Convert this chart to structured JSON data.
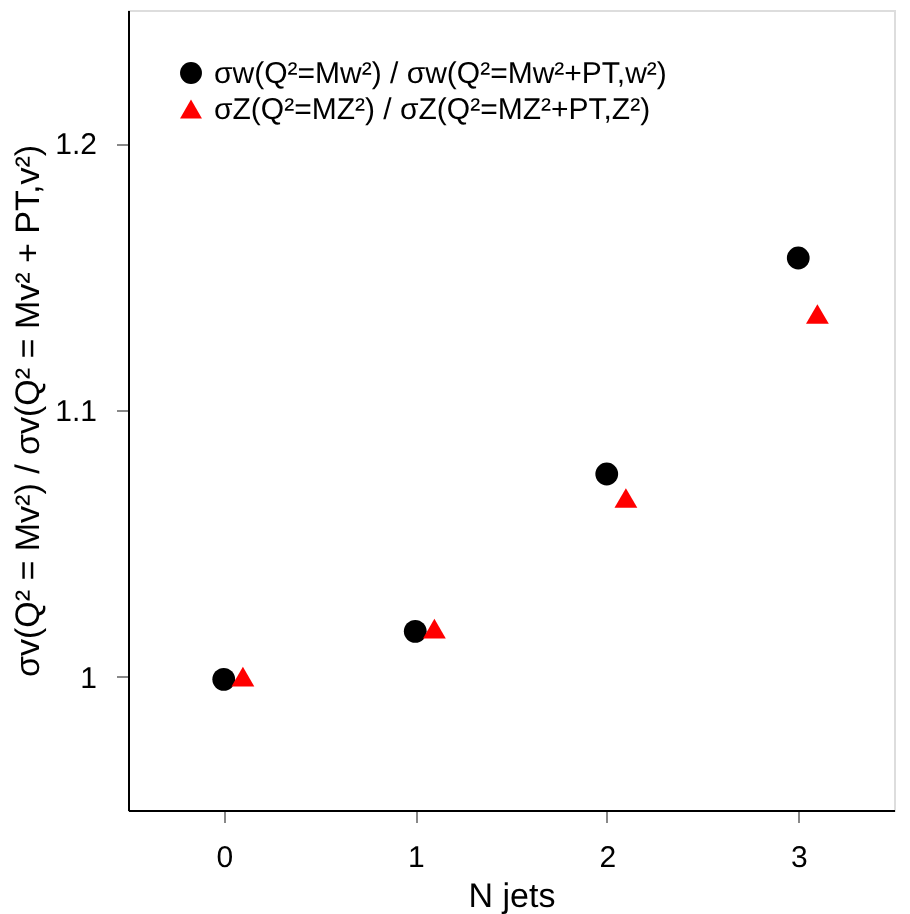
{
  "chart_data": {
    "type": "scatter",
    "xlabel": "N jets",
    "ylabel": "σv(Q² = Mv²) / σv(Q² = Mv² + PT,v²)",
    "series": [
      {
        "name": "σw(Q²=Mw²) / σw(Q²=Mw²+PT,w²)",
        "color": "#000000",
        "marker": "circle",
        "x": [
          0,
          1,
          2,
          3
        ],
        "values": [
          0.999,
          1.017,
          1.076,
          1.157
        ]
      },
      {
        "name": "σZ(Q²=MZ²) / σZ(Q²=MZ²+PT,Z²)",
        "color": "#ff0000",
        "marker": "triangle",
        "x": [
          0.1,
          1.1,
          2.1,
          3.1
        ],
        "values": [
          1.0,
          1.018,
          1.067,
          1.136
        ]
      }
    ],
    "xlim": [
      -0.5,
      3.5
    ],
    "xticks": [
      0,
      1,
      2,
      3
    ],
    "ylim": [
      0.95,
      1.25
    ],
    "yticks": [
      1,
      1.1,
      1.2
    ],
    "grid": false,
    "legend": "top left"
  }
}
